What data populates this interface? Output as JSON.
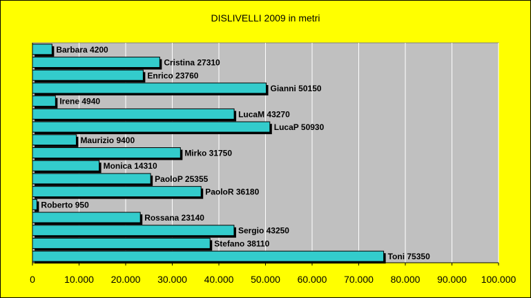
{
  "chart_data": {
    "type": "bar",
    "orientation": "horizontal",
    "title": "DISLIVELLI 2009 in metri",
    "xlabel": "",
    "ylabel": "",
    "xlim": [
      0,
      100000
    ],
    "x_ticks": [
      0,
      10000,
      20000,
      30000,
      40000,
      50000,
      60000,
      70000,
      80000,
      90000,
      100000
    ],
    "x_tick_labels": [
      "0",
      "10.000",
      "20.000",
      "30.000",
      "40.000",
      "50.000",
      "60.000",
      "70.000",
      "80.000",
      "90.000",
      "100.000"
    ],
    "grid": "vertical",
    "categories": [
      "Barbara",
      "Cristina",
      "Enrico",
      "Gianni",
      "Irene",
      "LucaM",
      "LucaP",
      "Maurizio",
      "Mirko",
      "Monica",
      "PaoloP",
      "PaoloR",
      "Roberto",
      "Rossana",
      "Sergio",
      "Stefano",
      "Toni"
    ],
    "values": [
      4200,
      27310,
      23760,
      50150,
      4940,
      43270,
      50930,
      9400,
      31750,
      14310,
      25355,
      36180,
      950,
      23140,
      43250,
      38110,
      75350
    ],
    "data_labels": [
      "Barbara 4200",
      "Cristina 27310",
      "Enrico 23760",
      "Gianni 50150",
      "Irene 4940",
      "LucaM 43270",
      "LucaP 50930",
      "Maurizio 9400",
      "Mirko 31750",
      "Monica 14310",
      "PaoloP 25355",
      "PaoloR 36180",
      "Roberto 950",
      "Rossana 23140",
      "Sergio 43250",
      "Stefano 38110",
      "Toni 75350"
    ],
    "colors": {
      "background": "#ffff00",
      "plot_area": "#c0c0c0",
      "bar_fill": "#33cccc",
      "gridline": "#ffffff"
    }
  }
}
